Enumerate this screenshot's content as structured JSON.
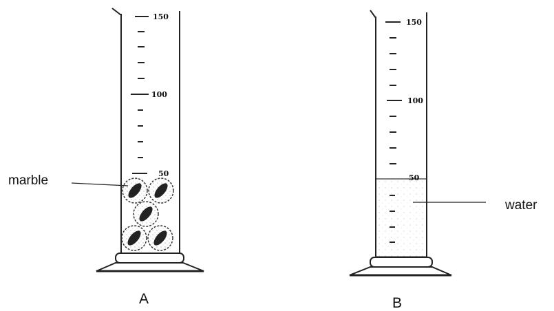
{
  "cylinder_a": {
    "caption": "A",
    "scale_labels": [
      "150",
      "100",
      "50"
    ],
    "callout": "marble"
  },
  "cylinder_b": {
    "caption": "B",
    "scale_labels": [
      "150",
      "100",
      "50"
    ],
    "callout": "water"
  }
}
